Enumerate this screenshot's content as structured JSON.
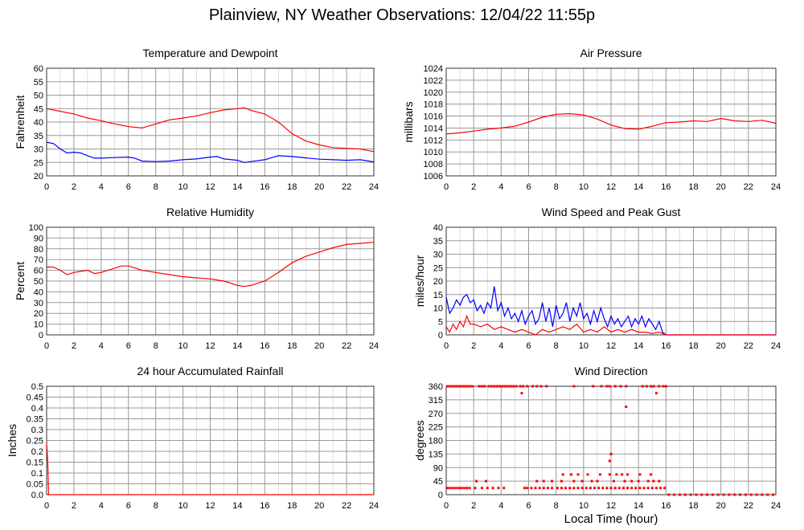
{
  "page": {
    "title": "Plainview, NY Weather Observations: 12/04/22 11:55p"
  },
  "colors": {
    "red": "#ff0000",
    "blue": "#0000ff",
    "grid": "#999999"
  },
  "chart_data": [
    {
      "id": "temp",
      "type": "line",
      "title": "Temperature and Dewpoint",
      "ylabel": "Fahrenheit",
      "xlabel": "",
      "xlim": [
        0,
        24
      ],
      "ylim": [
        20,
        60
      ],
      "yticks": [
        "20",
        "25",
        "30",
        "35",
        "40",
        "45",
        "50",
        "55",
        "60"
      ],
      "xticks": [
        "0",
        "2",
        "4",
        "6",
        "8",
        "10",
        "12",
        "14",
        "16",
        "18",
        "20",
        "22",
        "24"
      ],
      "grid": true,
      "series": [
        {
          "color": "#ff0000",
          "x": [
            0,
            1,
            2,
            3,
            4,
            5,
            6,
            7,
            8,
            9,
            10,
            11,
            12,
            13,
            14,
            14.5,
            15,
            16,
            17,
            18,
            19,
            20,
            21,
            22,
            23,
            24
          ],
          "y": [
            45,
            44,
            43,
            41.5,
            40.5,
            39.3,
            38.3,
            37.8,
            39.3,
            40.8,
            41.5,
            42.3,
            43.5,
            44.5,
            45,
            45.3,
            44.3,
            43,
            40,
            35.7,
            33,
            31.5,
            30.5,
            30.2,
            30,
            29
          ]
        },
        {
          "color": "#0000ff",
          "x": [
            0,
            0.5,
            1,
            1.5,
            2,
            2.5,
            3,
            3.5,
            4,
            5,
            6,
            6.5,
            7,
            8,
            9,
            10,
            11,
            12,
            12.5,
            13,
            14,
            14.5,
            15,
            16,
            17,
            18,
            19,
            20,
            21,
            22,
            23,
            24
          ],
          "y": [
            32.5,
            32,
            30,
            28.5,
            28.8,
            28.5,
            27.5,
            26.6,
            26.6,
            26.8,
            27,
            26.5,
            25.5,
            25.3,
            25.5,
            26,
            26.3,
            27,
            27.2,
            26.3,
            25.8,
            25,
            25.3,
            26,
            27.5,
            27.2,
            26.7,
            26.2,
            26,
            25.8,
            26,
            25.2
          ]
        }
      ]
    },
    {
      "id": "pressure",
      "type": "line",
      "title": "Air Pressure",
      "ylabel": "millibars",
      "xlabel": "",
      "xlim": [
        0,
        24
      ],
      "ylim": [
        1006,
        1024
      ],
      "yticks": [
        "1006",
        "1008",
        "1010",
        "1012",
        "1014",
        "1016",
        "1018",
        "1020",
        "1022",
        "1024"
      ],
      "xticks": [
        "0",
        "2",
        "4",
        "6",
        "8",
        "10",
        "12",
        "14",
        "16",
        "18",
        "20",
        "22",
        "24"
      ],
      "grid": true,
      "series": [
        {
          "color": "#ff0000",
          "x": [
            0,
            1,
            2,
            3,
            4,
            5,
            6,
            7,
            8,
            9,
            10,
            11,
            12,
            13,
            14,
            15,
            16,
            17,
            18,
            19,
            20,
            21,
            22,
            23,
            24
          ],
          "y": [
            1013,
            1013.2,
            1013.5,
            1013.8,
            1014,
            1014.3,
            1015,
            1015.8,
            1016.3,
            1016.4,
            1016.2,
            1015.5,
            1014.5,
            1013.9,
            1013.8,
            1014.3,
            1014.9,
            1015,
            1015.2,
            1015.1,
            1015.6,
            1015.2,
            1015.1,
            1015.3,
            1014.8
          ]
        }
      ]
    },
    {
      "id": "humidity",
      "type": "line",
      "title": "Relative Humidity",
      "ylabel": "Percent",
      "xlabel": "",
      "xlim": [
        0,
        24
      ],
      "ylim": [
        0,
        100
      ],
      "yticks": [
        "0",
        "10",
        "20",
        "30",
        "40",
        "50",
        "60",
        "70",
        "80",
        "90",
        "100"
      ],
      "xticks": [
        "0",
        "2",
        "4",
        "6",
        "8",
        "10",
        "12",
        "14",
        "16",
        "18",
        "20",
        "22",
        "24"
      ],
      "grid": true,
      "series": [
        {
          "color": "#ff0000",
          "x": [
            0,
            0.5,
            1,
            1.5,
            2,
            2.5,
            3,
            3.5,
            4,
            5,
            5.5,
            6,
            7,
            8,
            9,
            10,
            11,
            12,
            13,
            14,
            14.5,
            15,
            16,
            17,
            18,
            19,
            20,
            21,
            22,
            23,
            24
          ],
          "y": [
            63,
            63,
            60,
            56,
            58,
            59,
            60,
            57,
            58,
            62,
            64,
            64,
            60,
            58,
            56,
            54,
            53,
            52,
            50,
            46,
            45,
            46,
            50,
            58,
            67,
            73,
            77,
            81,
            84,
            85,
            86
          ]
        }
      ]
    },
    {
      "id": "wind",
      "type": "line",
      "title": "Wind Speed and Peak Gust",
      "ylabel": "miles/hour",
      "xlabel": "",
      "xlim": [
        0,
        24
      ],
      "ylim": [
        0,
        40
      ],
      "yticks": [
        "0",
        "5",
        "10",
        "15",
        "20",
        "25",
        "30",
        "35",
        "40"
      ],
      "xticks": [
        "0",
        "2",
        "4",
        "6",
        "8",
        "10",
        "12",
        "14",
        "16",
        "18",
        "20",
        "22",
        "24"
      ],
      "grid": true,
      "series": [
        {
          "color": "#0000ff",
          "x": [
            0,
            0.25,
            0.5,
            0.75,
            1,
            1.25,
            1.5,
            1.75,
            2,
            2.25,
            2.5,
            2.75,
            3,
            3.25,
            3.5,
            3.75,
            4,
            4.25,
            4.5,
            4.75,
            5,
            5.25,
            5.5,
            5.75,
            6,
            6.25,
            6.5,
            6.75,
            7,
            7.25,
            7.5,
            7.75,
            8,
            8.25,
            8.5,
            8.75,
            9,
            9.25,
            9.5,
            9.75,
            10,
            10.25,
            10.5,
            10.75,
            11,
            11.25,
            11.5,
            11.75,
            12,
            12.25,
            12.5,
            12.75,
            13,
            13.25,
            13.5,
            13.75,
            14,
            14.25,
            14.5,
            14.75,
            15,
            15.25,
            15.5,
            15.75,
            16,
            24
          ],
          "y": [
            14,
            8,
            10,
            13,
            11,
            14,
            15,
            12,
            13,
            9,
            11,
            8,
            12,
            10,
            18,
            9,
            12,
            7,
            10,
            6,
            8,
            5,
            9,
            4,
            7,
            9,
            4,
            6,
            12,
            5,
            10,
            3,
            11,
            6,
            8,
            12,
            5,
            10,
            7,
            12,
            6,
            8,
            4,
            9,
            5,
            10,
            6,
            3,
            7,
            4,
            6,
            3,
            5,
            7,
            3,
            6,
            4,
            7,
            3,
            6,
            4,
            2,
            5,
            1,
            0,
            0
          ]
        },
        {
          "color": "#ff0000",
          "x": [
            0,
            0.25,
            0.5,
            0.75,
            1,
            1.25,
            1.5,
            1.75,
            2,
            2.5,
            3,
            3.5,
            4,
            4.5,
            5,
            5.5,
            6,
            6.5,
            7,
            7.5,
            8,
            8.5,
            9,
            9.5,
            10,
            10.5,
            11,
            11.5,
            12,
            12.5,
            13,
            13.5,
            14,
            14.5,
            15,
            15.5,
            16,
            24
          ],
          "y": [
            3,
            1,
            4,
            2,
            5,
            3,
            7,
            4,
            4,
            3,
            4,
            2,
            3,
            2,
            1,
            2,
            1,
            0,
            2,
            1,
            2,
            3,
            2,
            4,
            1,
            2,
            1,
            3,
            1,
            2,
            1,
            2,
            1,
            1,
            0.5,
            1,
            0,
            0
          ]
        }
      ]
    },
    {
      "id": "rain",
      "type": "line",
      "title": "24 hour Accumulated Rainfall",
      "ylabel": "Inches",
      "xlabel": "",
      "xlim": [
        0,
        24
      ],
      "ylim": [
        0,
        0.5
      ],
      "yticks": [
        "0.0",
        "0.05",
        "0.1",
        "0.15",
        "0.2",
        "0.25",
        "0.3",
        "0.35",
        "0.4",
        "0.45",
        "0.5"
      ],
      "xticks": [
        "0",
        "2",
        "4",
        "6",
        "8",
        "10",
        "12",
        "14",
        "16",
        "18",
        "20",
        "22",
        "24"
      ],
      "grid": true,
      "series": [
        {
          "color": "#ff0000",
          "x": [
            0,
            0.08,
            0.15,
            24
          ],
          "y": [
            0.24,
            0.15,
            0,
            0
          ]
        }
      ]
    },
    {
      "id": "winddir",
      "type": "scatter",
      "title": "Wind Direction",
      "ylabel": "degrees",
      "xlabel": "Local Time (hour)",
      "xlim": [
        0,
        24
      ],
      "ylim": [
        0,
        360
      ],
      "yticks": [
        "0",
        "45",
        "90",
        "135",
        "180",
        "225",
        "270",
        "315",
        "360"
      ],
      "xticks": [
        "0",
        "2",
        "4",
        "6",
        "8",
        "10",
        "12",
        "14",
        "16",
        "18",
        "20",
        "22",
        "24"
      ],
      "grid": true,
      "series": [
        {
          "color": "#ff0000",
          "x": [
            0.1,
            0.3,
            0.5,
            0.7,
            0.9,
            1.1,
            1.3,
            1.5,
            1.7,
            1.9,
            2.4,
            2.6,
            2.8,
            3.1,
            3.3,
            3.5,
            3.7,
            3.9,
            4.1,
            4.3,
            4.5,
            4.7,
            4.9,
            5.1,
            5.4,
            5.6,
            5.9,
            6.3,
            6.6,
            6.9,
            7.3,
            9.3,
            10.7,
            11.3,
            11.7,
            11.9,
            12.3,
            12.7,
            13.1,
            14.3,
            14.6,
            14.9,
            15.1,
            15.5,
            15.8,
            16.0,
            0.1,
            0.3,
            0.5,
            0.7,
            0.9,
            1.1,
            1.3,
            1.5,
            1.7,
            2.1,
            2.6,
            3.0,
            3.4,
            3.8,
            4.2,
            5.7,
            5.9,
            6.2,
            6.5,
            6.8,
            7.1,
            7.4,
            7.7,
            8.1,
            8.4,
            8.7,
            9.0,
            9.3,
            9.6,
            9.9,
            10.2,
            10.5,
            10.8,
            11.1,
            11.4,
            11.7,
            12.0,
            12.3,
            12.6,
            12.9,
            13.2,
            13.5,
            13.8,
            14.1,
            14.4,
            14.7,
            15.0,
            15.3,
            15.6,
            15.9,
            2.2,
            2.9,
            6.6,
            7.1,
            7.7,
            8.4,
            9.3,
            9.9,
            10.6,
            11.0,
            12.2,
            13.0,
            13.5,
            14.0,
            14.7,
            15.1,
            15.5,
            8.5,
            9.1,
            9.6,
            10.3,
            11.2,
            11.9,
            12.4,
            12.8,
            13.2,
            14.1,
            14.9,
            11.9,
            12.0,
            13.1,
            5.5,
            15.3,
            16.2,
            16.6,
            17.0,
            17.4,
            17.8,
            18.2,
            18.6,
            19.0,
            19.4,
            19.8,
            20.2,
            20.6,
            21.0,
            21.4,
            21.8,
            22.2,
            22.6,
            23.0,
            23.4,
            23.8
          ],
          "y": [
            360,
            360,
            360,
            360,
            360,
            360,
            360,
            360,
            360,
            360,
            360,
            360,
            360,
            360,
            360,
            360,
            360,
            360,
            360,
            360,
            360,
            360,
            360,
            360,
            360,
            360,
            360,
            360,
            360,
            360,
            360,
            360,
            360,
            360,
            360,
            360,
            360,
            360,
            360,
            360,
            360,
            360,
            360,
            360,
            360,
            360,
            22,
            22,
            22,
            22,
            22,
            22,
            22,
            22,
            22,
            22,
            22,
            22,
            22,
            22,
            22,
            22,
            22,
            22,
            22,
            22,
            22,
            22,
            22,
            22,
            22,
            22,
            22,
            22,
            22,
            22,
            22,
            22,
            22,
            22,
            22,
            22,
            22,
            22,
            22,
            22,
            22,
            22,
            22,
            22,
            22,
            22,
            22,
            22,
            22,
            22,
            45,
            45,
            45,
            45,
            45,
            45,
            45,
            45,
            45,
            45,
            45,
            45,
            45,
            45,
            45,
            45,
            45,
            67,
            67,
            67,
            67,
            67,
            67,
            67,
            67,
            67,
            67,
            67,
            112,
            135,
            292,
            337,
            337,
            0,
            0,
            0,
            0,
            0,
            0,
            0,
            0,
            0,
            0,
            0,
            0,
            0,
            0,
            0,
            0,
            0,
            0,
            0,
            0
          ]
        }
      ]
    }
  ]
}
